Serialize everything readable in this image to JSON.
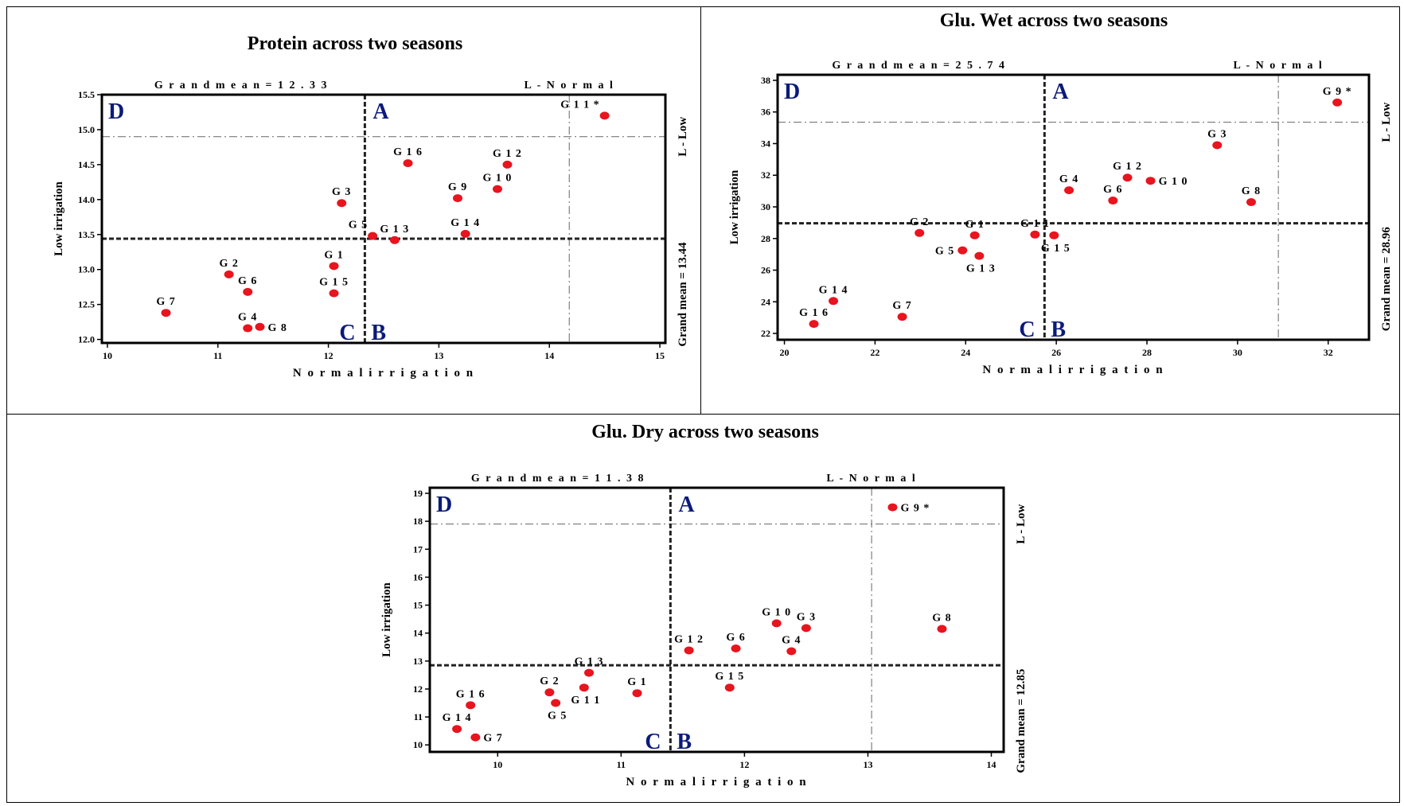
{
  "chart_data": [
    {
      "type": "scatter",
      "title": "Protein across two seasons",
      "xlabel": "N o r m a l  i r r i g a t i o n",
      "ylabel": "Low irrigation",
      "xlim": [
        9.95,
        15.05
      ],
      "ylim": [
        11.95,
        15.5
      ],
      "x_ticks": [
        10,
        11,
        12,
        13,
        14,
        15
      ],
      "y_ticks": [
        12.0,
        12.5,
        13.0,
        13.5,
        14.0,
        14.5,
        15.0,
        15.5
      ],
      "y_decimals": 1,
      "grand_mean_x_text": "G r a n d  m e a n  =  1 2 . 3 3",
      "grand_mean_y_text": "Grand mean = 13.44",
      "l_normal_text": "L  -  N o r m a l",
      "l_low_text": "L - Low",
      "mean_x": 12.33,
      "mean_y": 13.44,
      "l_normal_x": 14.18,
      "l_low_y": 14.9,
      "quadrants": [
        "D",
        "A",
        "C",
        "B"
      ],
      "point_color": "#e8141e",
      "points": [
        {
          "label": "G 1 1 *",
          "x": 14.5,
          "y": 15.2,
          "lpos": "nw"
        },
        {
          "label": "G 1 6",
          "x": 12.72,
          "y": 14.52,
          "lpos": "n"
        },
        {
          "label": "G 1 2",
          "x": 13.62,
          "y": 14.5,
          "lpos": "n"
        },
        {
          "label": "G 1 0",
          "x": 13.53,
          "y": 14.15,
          "lpos": "n"
        },
        {
          "label": "G 9",
          "x": 13.17,
          "y": 14.02,
          "lpos": "n"
        },
        {
          "label": "G 3",
          "x": 12.12,
          "y": 13.95,
          "lpos": "n"
        },
        {
          "label": "G 5",
          "x": 12.4,
          "y": 13.48,
          "lpos": "nw"
        },
        {
          "label": "G 1 3",
          "x": 12.6,
          "y": 13.42,
          "lpos": "n"
        },
        {
          "label": "G 1 4",
          "x": 13.24,
          "y": 13.51,
          "lpos": "n"
        },
        {
          "label": "G 1",
          "x": 12.05,
          "y": 13.05,
          "lpos": "n"
        },
        {
          "label": "G 1 5",
          "x": 12.05,
          "y": 12.66,
          "lpos": "n"
        },
        {
          "label": "G 2",
          "x": 11.1,
          "y": 12.93,
          "lpos": "n"
        },
        {
          "label": "G 6",
          "x": 11.27,
          "y": 12.68,
          "lpos": "n"
        },
        {
          "label": "G 7",
          "x": 10.53,
          "y": 12.38,
          "lpos": "n"
        },
        {
          "label": "G 4",
          "x": 11.27,
          "y": 12.16,
          "lpos": "n"
        },
        {
          "label": "G 8",
          "x": 11.38,
          "y": 12.18,
          "lpos": "e"
        }
      ]
    },
    {
      "type": "scatter",
      "title": "Glu. Wet across two seasons",
      "xlabel": "N o r m a l  i r r i g a t i o n",
      "ylabel": "Low irrigation",
      "xlim": [
        19.85,
        32.9
      ],
      "ylim": [
        21.6,
        38.35
      ],
      "x_ticks": [
        20,
        22,
        24,
        26,
        28,
        30,
        32
      ],
      "y_ticks": [
        22,
        24,
        26,
        28,
        30,
        32,
        34,
        36,
        38
      ],
      "y_decimals": 0,
      "grand_mean_x_text": "G r a n d  m e a n  =  2 5 . 7 4",
      "grand_mean_y_text": "Grand mean = 28.96",
      "l_normal_text": "L  -  N o r m a l",
      "l_low_text": "L - Low",
      "mean_x": 25.74,
      "mean_y": 28.96,
      "l_normal_x": 30.9,
      "l_low_y": 35.35,
      "quadrants": [
        "D",
        "A",
        "C",
        "B"
      ],
      "point_color": "#e8141e",
      "points": [
        {
          "label": "G 9 *",
          "x": 32.2,
          "y": 36.6,
          "lpos": "n"
        },
        {
          "label": "G 3",
          "x": 29.55,
          "y": 33.9,
          "lpos": "n"
        },
        {
          "label": "G 8",
          "x": 30.3,
          "y": 30.3,
          "lpos": "n"
        },
        {
          "label": "G 1 2",
          "x": 27.57,
          "y": 31.85,
          "lpos": "n"
        },
        {
          "label": "G 1 0",
          "x": 28.08,
          "y": 31.65,
          "lpos": "e"
        },
        {
          "label": "G 4",
          "x": 26.28,
          "y": 31.05,
          "lpos": "n"
        },
        {
          "label": "G 6",
          "x": 27.25,
          "y": 30.4,
          "lpos": "n"
        },
        {
          "label": "G 2",
          "x": 22.98,
          "y": 28.35,
          "lpos": "n"
        },
        {
          "label": "G 1",
          "x": 24.2,
          "y": 28.2,
          "lpos": "n"
        },
        {
          "label": "G 1 1",
          "x": 25.53,
          "y": 28.25,
          "lpos": "n"
        },
        {
          "label": "G 1 5",
          "x": 25.95,
          "y": 28.2,
          "lpos": "s"
        },
        {
          "label": "G 5",
          "x": 23.93,
          "y": 27.25,
          "lpos": "w"
        },
        {
          "label": "G 1 3",
          "x": 24.3,
          "y": 26.9,
          "lpos": "s"
        },
        {
          "label": "G 1 4",
          "x": 21.08,
          "y": 24.05,
          "lpos": "n"
        },
        {
          "label": "G 7",
          "x": 22.6,
          "y": 23.05,
          "lpos": "n"
        },
        {
          "label": "G 1 6",
          "x": 20.65,
          "y": 22.6,
          "lpos": "n"
        }
      ]
    },
    {
      "type": "scatter",
      "title": "Glu. Dry across two seasons",
      "xlabel": "N o r m a l  i r r i g a t i o n",
      "ylabel": "Low irrigation",
      "xlim": [
        9.45,
        14.1
      ],
      "ylim": [
        9.75,
        19.2
      ],
      "x_ticks": [
        10,
        11,
        12,
        13,
        14
      ],
      "y_ticks": [
        10,
        11,
        12,
        13,
        14,
        15,
        16,
        17,
        18,
        19
      ],
      "y_decimals": 0,
      "grand_mean_x_text": "G r a n d  m e a n  =  1 1 . 3 8",
      "grand_mean_y_text": "Grand mean = 12.85",
      "l_normal_text": "L  -  N o r m a l",
      "l_low_text": "L - Low",
      "mean_x": 11.4,
      "mean_y": 12.85,
      "l_normal_x": 13.03,
      "l_low_y": 17.9,
      "quadrants": [
        "D",
        "A",
        "C",
        "B"
      ],
      "point_color": "#e8141e",
      "points": [
        {
          "label": "G 9 *",
          "x": 13.2,
          "y": 18.5,
          "lpos": "e"
        },
        {
          "label": "G 8",
          "x": 13.6,
          "y": 14.15,
          "lpos": "n"
        },
        {
          "label": "G 1 0",
          "x": 12.26,
          "y": 14.35,
          "lpos": "n"
        },
        {
          "label": "G 3",
          "x": 12.5,
          "y": 14.18,
          "lpos": "n"
        },
        {
          "label": "G 4",
          "x": 12.38,
          "y": 13.35,
          "lpos": "n"
        },
        {
          "label": "G 6",
          "x": 11.93,
          "y": 13.45,
          "lpos": "n"
        },
        {
          "label": "G 1 2",
          "x": 11.55,
          "y": 13.38,
          "lpos": "n"
        },
        {
          "label": "G 1 5",
          "x": 11.88,
          "y": 12.05,
          "lpos": "n"
        },
        {
          "label": "G 1 3",
          "x": 10.74,
          "y": 12.58,
          "lpos": "n"
        },
        {
          "label": "G 1 1",
          "x": 10.7,
          "y": 12.05,
          "lpos": "s"
        },
        {
          "label": "G 1",
          "x": 11.13,
          "y": 11.85,
          "lpos": "n"
        },
        {
          "label": "G 2",
          "x": 10.42,
          "y": 11.88,
          "lpos": "n"
        },
        {
          "label": "G 5",
          "x": 10.47,
          "y": 11.5,
          "lpos": "s"
        },
        {
          "label": "G 1 6",
          "x": 9.78,
          "y": 11.42,
          "lpos": "n"
        },
        {
          "label": "G 1 4",
          "x": 9.67,
          "y": 10.57,
          "lpos": "n"
        },
        {
          "label": "G 7",
          "x": 9.82,
          "y": 10.27,
          "lpos": "e"
        }
      ]
    }
  ]
}
